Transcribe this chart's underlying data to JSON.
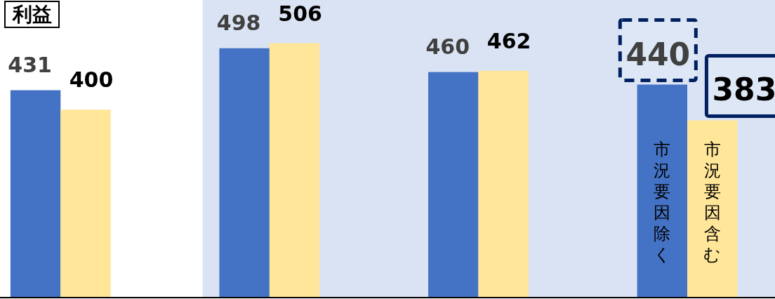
{
  "chart_data": {
    "type": "bar",
    "title": "利益",
    "categories": [
      null,
      null,
      null,
      null
    ],
    "series": [
      {
        "name": "市況要因除く",
        "color": "#4472c4",
        "values": [
          431,
          498,
          460,
          440
        ]
      },
      {
        "name": "市況要因含む",
        "color": "#ffe699",
        "values": [
          400,
          506,
          462,
          383
        ]
      }
    ],
    "ylim": [
      100,
      575
    ],
    "data_labels": true,
    "legend": false
  }
}
